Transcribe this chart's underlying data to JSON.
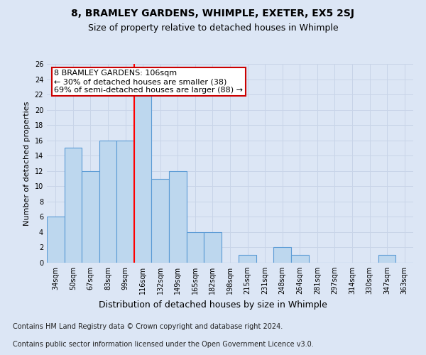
{
  "title": "8, BRAMLEY GARDENS, WHIMPLE, EXETER, EX5 2SJ",
  "subtitle": "Size of property relative to detached houses in Whimple",
  "xlabel": "Distribution of detached houses by size in Whimple",
  "ylabel": "Number of detached properties",
  "categories": [
    "34sqm",
    "50sqm",
    "67sqm",
    "83sqm",
    "99sqm",
    "116sqm",
    "132sqm",
    "149sqm",
    "165sqm",
    "182sqm",
    "198sqm",
    "215sqm",
    "231sqm",
    "248sqm",
    "264sqm",
    "281sqm",
    "297sqm",
    "314sqm",
    "330sqm",
    "347sqm",
    "363sqm"
  ],
  "values": [
    6,
    15,
    12,
    16,
    16,
    22,
    11,
    12,
    4,
    4,
    0,
    1,
    0,
    2,
    1,
    0,
    0,
    0,
    0,
    1,
    0
  ],
  "bar_color": "#bdd7ee",
  "bar_edge_color": "#5b9bd5",
  "red_line_x": 4.5,
  "annotation_line1": "8 BRAMLEY GARDENS: 106sqm",
  "annotation_line2": "← 30% of detached houses are smaller (38)",
  "annotation_line3": "69% of semi-detached houses are larger (88) →",
  "annotation_box_color": "#ffffff",
  "annotation_box_edge_color": "#cc0000",
  "ylim": [
    0,
    26
  ],
  "yticks": [
    0,
    2,
    4,
    6,
    8,
    10,
    12,
    14,
    16,
    18,
    20,
    22,
    24,
    26
  ],
  "grid_color": "#c8d4e8",
  "footnote1": "Contains HM Land Registry data © Crown copyright and database right 2024.",
  "footnote2": "Contains public sector information licensed under the Open Government Licence v3.0.",
  "bg_color": "#dce6f5",
  "plot_bg_color": "#dce6f5",
  "title_fontsize": 10,
  "subtitle_fontsize": 9,
  "xlabel_fontsize": 9,
  "ylabel_fontsize": 8,
  "tick_fontsize": 7,
  "footnote_fontsize": 7,
  "annotation_fontsize": 8
}
